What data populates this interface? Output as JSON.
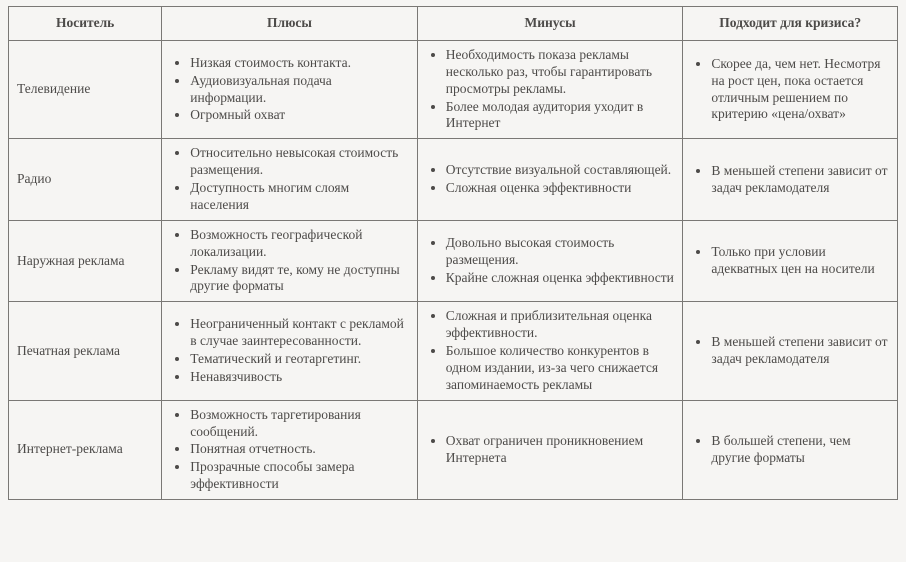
{
  "table": {
    "headers": {
      "col1": "Носитель",
      "col2": "Плюсы",
      "col3": "Минусы",
      "col4": "Подходит для кризиса?"
    },
    "rows": [
      {
        "media": "Телевидение",
        "plus": [
          "Низкая стоимость контакта.",
          "Аудиовизуальная подача информации.",
          "Огромный охват"
        ],
        "minus": [
          "Необходимость показа рекламы несколько раз, чтобы гарантировать просмотры рекламы.",
          "Более молодая аудитория уходит в Интернет"
        ],
        "crisis": [
          "Скорее да, чем нет. Несмотря на рост цен, пока остается отличным решением по критерию «цена/охват»"
        ]
      },
      {
        "media": "Радио",
        "plus": [
          "Относительно невысокая стоимость размещения.",
          "Доступность многим слоям населения"
        ],
        "minus": [
          "Отсутствие визуальной составляющей.",
          "Сложная оценка эффективности"
        ],
        "crisis": [
          "В меньшей степени зависит от задач рекламодателя"
        ]
      },
      {
        "media": "Наружная реклама",
        "plus": [
          "Возможность географической локализации.",
          "Рекламу видят те, кому не доступны другие форматы"
        ],
        "minus": [
          "Довольно высокая стоимость размещения.",
          "Крайне сложная оценка эффективности"
        ],
        "crisis": [
          "Только при условии адекватных цен на носители"
        ]
      },
      {
        "media": "Печатная реклама",
        "plus": [
          "Неограниченный контакт с рекламой в случае заинтересованности.",
          "Тематический и геотаргетинг.",
          "Ненавязчивость"
        ],
        "minus": [
          "Сложная и приблизительная оценка эффективности.",
          "Большое количество конкурентов в одном издании, из-за чего снижается запоминаемость рекламы"
        ],
        "crisis": [
          "В меньшей степени зависит от задач рекламодателя"
        ]
      },
      {
        "media": "Интернет-реклама",
        "plus": [
          "Возможность таргетирования сообщений.",
          "Понятная отчетность.",
          "Прозрачные способы замера эффективности"
        ],
        "minus": [
          "Охват ограничен проникновением Интернета"
        ],
        "crisis": [
          "В большей степени, чем другие форматы"
        ]
      }
    ]
  }
}
